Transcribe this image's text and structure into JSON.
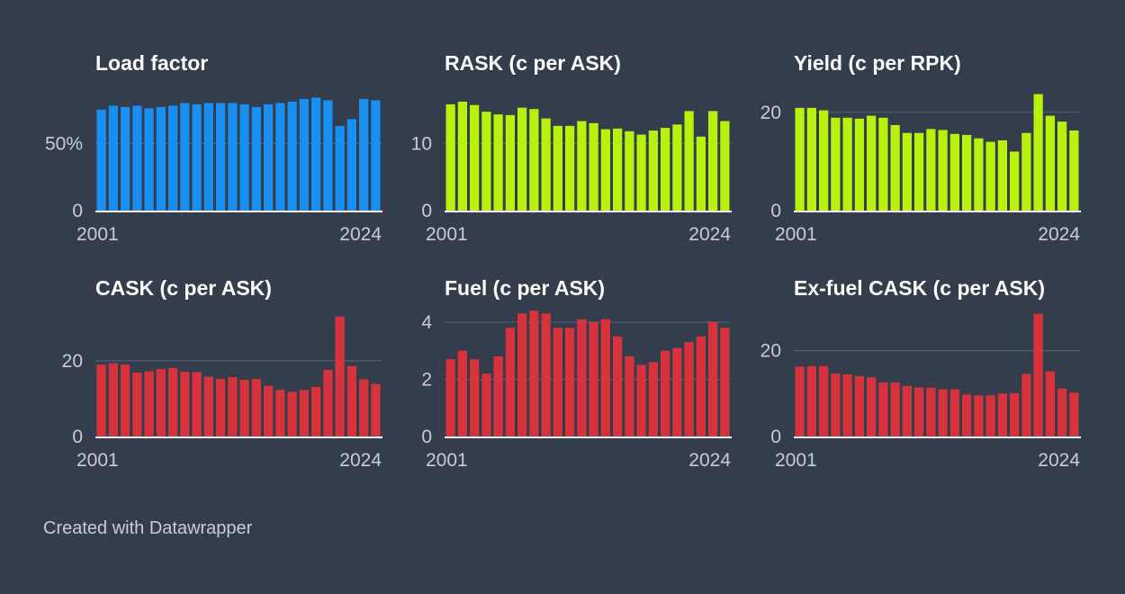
{
  "credit": "Created with Datawrapper",
  "colors": {
    "background": "#333d4c",
    "gridline": "#5a6474",
    "baseline": "#ffffff",
    "tick_text": "#c9cdd3",
    "blue": "#1a8ff2",
    "lime": "#b6f20d",
    "red": "#d8323d"
  },
  "chart_data": [
    {
      "type": "bar",
      "title": "Load factor",
      "color": "#1a8ff2",
      "x_start_label": "2001",
      "x_end_label": "2024",
      "ylim": [
        0,
        95
      ],
      "yticks": [
        0,
        50
      ],
      "ytick_labels": [
        "0",
        "50%"
      ],
      "categories": [
        "2001",
        "2002",
        "2003",
        "2004",
        "2005",
        "2006",
        "2007",
        "2008",
        "2009",
        "2010",
        "2011",
        "2012",
        "2013",
        "2014",
        "2015",
        "2016",
        "2017",
        "2018",
        "2019",
        "2020",
        "2021",
        "2022",
        "2023",
        "2024"
      ],
      "values": [
        75,
        78,
        77,
        78,
        76,
        77,
        78,
        80,
        79,
        80,
        80,
        80,
        79,
        77,
        79,
        80,
        81,
        83,
        84,
        82,
        63,
        68,
        83,
        82
      ]
    },
    {
      "type": "bar",
      "title": "RASK (c per ASK)",
      "color": "#b6f20d",
      "x_start_label": "2001",
      "x_end_label": "2024",
      "ylim": [
        0,
        19
      ],
      "yticks": [
        0,
        10
      ],
      "ytick_labels": [
        "0",
        "10"
      ],
      "categories": [
        "2001",
        "2002",
        "2003",
        "2004",
        "2005",
        "2006",
        "2007",
        "2008",
        "2009",
        "2010",
        "2011",
        "2012",
        "2013",
        "2014",
        "2015",
        "2016",
        "2017",
        "2018",
        "2019",
        "2020",
        "2021",
        "2022",
        "2023",
        "2024"
      ],
      "values": [
        15.8,
        16.2,
        15.7,
        14.7,
        14.3,
        14.2,
        15.3,
        15.1,
        13.7,
        12.6,
        12.6,
        13.3,
        13.0,
        12.1,
        12.2,
        11.8,
        11.3,
        11.9,
        12.3,
        12.8,
        14.8,
        11.0,
        14.8,
        13.3
      ]
    },
    {
      "type": "bar",
      "title": "Yield (c per RPK)",
      "color": "#b6f20d",
      "x_start_label": "2001",
      "x_end_label": "2024",
      "ylim": [
        0,
        26
      ],
      "yticks": [
        0,
        20
      ],
      "ytick_labels": [
        "0",
        "20"
      ],
      "categories": [
        "2001",
        "2002",
        "2003",
        "2004",
        "2005",
        "2006",
        "2007",
        "2008",
        "2009",
        "2010",
        "2011",
        "2012",
        "2013",
        "2014",
        "2015",
        "2016",
        "2017",
        "2018",
        "2019",
        "2020",
        "2021",
        "2022",
        "2023",
        "2024"
      ],
      "values": [
        20.9,
        20.9,
        20.4,
        18.9,
        18.9,
        18.7,
        19.3,
        18.9,
        17.4,
        15.8,
        15.8,
        16.6,
        16.4,
        15.6,
        15.4,
        14.7,
        14.0,
        14.3,
        12.0,
        15.8,
        23.7,
        19.3,
        18.1,
        16.3
      ]
    },
    {
      "type": "bar",
      "title": "CASK (c per ASK)",
      "color": "#d8323d",
      "x_start_label": "2001",
      "x_end_label": "2024",
      "ylim": [
        0,
        34
      ],
      "yticks": [
        0,
        20
      ],
      "ytick_labels": [
        "0",
        "20"
      ],
      "categories": [
        "2001",
        "2002",
        "2003",
        "2004",
        "2005",
        "2006",
        "2007",
        "2008",
        "2009",
        "2010",
        "2011",
        "2012",
        "2013",
        "2014",
        "2015",
        "2016",
        "2017",
        "2018",
        "2019",
        "2020",
        "2021",
        "2022",
        "2023",
        "2024"
      ],
      "values": [
        19.0,
        19.3,
        19.0,
        16.9,
        17.2,
        17.8,
        18.1,
        17.1,
        17.0,
        15.8,
        15.2,
        15.7,
        15.0,
        15.2,
        13.4,
        12.3,
        11.8,
        12.3,
        13.1,
        17.6,
        31.7,
        18.6,
        15.1,
        13.9
      ]
    },
    {
      "type": "bar",
      "title": "Fuel (c per ASK)",
      "color": "#d8323d",
      "x_start_label": "2001",
      "x_end_label": "2024",
      "ylim": [
        0,
        4.5
      ],
      "yticks": [
        0,
        2,
        4
      ],
      "ytick_labels": [
        "0",
        "2",
        "4"
      ],
      "categories": [
        "2001",
        "2002",
        "2003",
        "2004",
        "2005",
        "2006",
        "2007",
        "2008",
        "2009",
        "2010",
        "2011",
        "2012",
        "2013",
        "2014",
        "2015",
        "2016",
        "2017",
        "2018",
        "2019",
        "2020",
        "2021",
        "2022",
        "2023",
        "2024"
      ],
      "values": [
        2.7,
        3.0,
        2.7,
        2.2,
        2.8,
        3.8,
        4.3,
        4.4,
        4.3,
        3.8,
        3.8,
        4.1,
        4.0,
        4.1,
        3.5,
        2.8,
        2.5,
        2.6,
        3.0,
        3.1,
        3.3,
        3.5,
        4.0,
        3.8
      ]
    },
    {
      "type": "bar",
      "title": "Ex-fuel CASK (c per ASK)",
      "color": "#d8323d",
      "x_start_label": "2001",
      "x_end_label": "2024",
      "ylim": [
        0,
        30
      ],
      "yticks": [
        0,
        20
      ],
      "ytick_labels": [
        "0",
        "20"
      ],
      "categories": [
        "2001",
        "2002",
        "2003",
        "2004",
        "2005",
        "2006",
        "2007",
        "2008",
        "2009",
        "2010",
        "2011",
        "2012",
        "2013",
        "2014",
        "2015",
        "2016",
        "2017",
        "2018",
        "2019",
        "2020",
        "2021",
        "2022",
        "2023",
        "2024"
      ],
      "values": [
        16.3,
        16.4,
        16.4,
        14.7,
        14.5,
        14.1,
        13.8,
        12.6,
        12.6,
        11.8,
        11.4,
        11.4,
        11.0,
        11.0,
        9.8,
        9.6,
        9.6,
        10.0,
        10.1,
        14.6,
        28.6,
        15.2,
        11.2,
        10.2
      ]
    }
  ]
}
